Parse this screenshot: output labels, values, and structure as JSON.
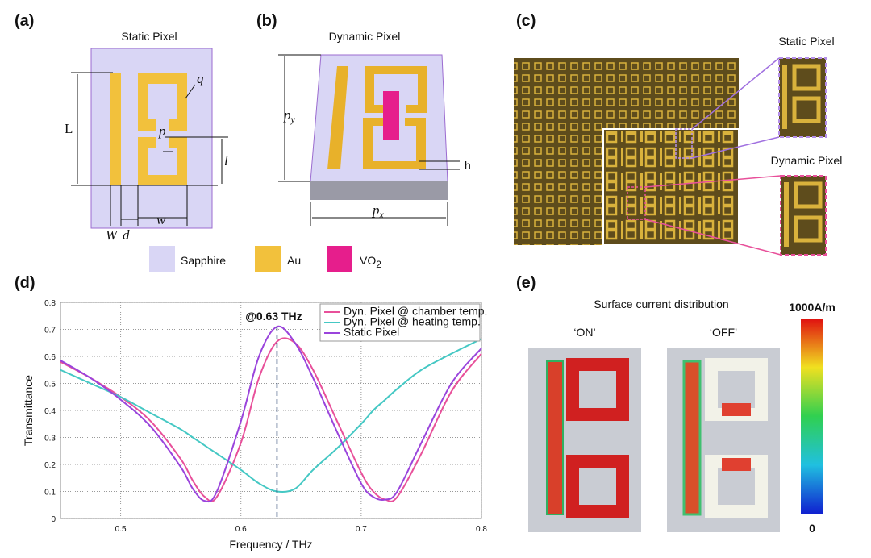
{
  "panel_a": {
    "label": "(a)",
    "title": "Static Pixel",
    "dims": [
      "L",
      "q",
      "p",
      "l",
      "W",
      "d",
      "w"
    ]
  },
  "panel_b": {
    "label": "(b)",
    "title": "Dynamic Pixel",
    "py": {
      "main": "p",
      "sub": "y"
    },
    "px": {
      "main": "p",
      "sub": "x"
    },
    "h": "h"
  },
  "panel_c": {
    "label": "(c)",
    "static": "Static Pixel",
    "dynamic": "Dynamic Pixel"
  },
  "materials": [
    {
      "text": "Sapphire"
    },
    {
      "text": "Au"
    },
    {
      "text": "VO",
      "sub": "2"
    }
  ],
  "panel_d": {
    "label": "(d)"
  },
  "panel_e": {
    "label": "(e)",
    "title": "Surface current distribution",
    "on": "‘ON’",
    "off": "‘OFF’",
    "max": "1000A/m",
    "min": "0"
  },
  "chart_data": {
    "type": "line",
    "xlabel": "Frequency / THz",
    "ylabel": "Transmittance",
    "annotation": "@0.63 THz",
    "annotation_x": 0.63,
    "x": [
      0.45,
      0.475,
      0.5,
      0.525,
      0.55,
      0.56,
      0.57,
      0.58,
      0.6,
      0.615,
      0.63,
      0.645,
      0.66,
      0.68,
      0.7,
      0.71,
      0.72,
      0.73,
      0.75,
      0.775,
      0.8
    ],
    "series": [
      {
        "name": "Dyn. Pixel @ chamber temp.",
        "color": "#e8509a",
        "values": [
          0.58,
          0.52,
          0.45,
          0.36,
          0.22,
          0.14,
          0.08,
          0.08,
          0.28,
          0.52,
          0.655,
          0.65,
          0.55,
          0.36,
          0.17,
          0.1,
          0.07,
          0.08,
          0.24,
          0.47,
          0.61
        ]
      },
      {
        "name": "Dyn. Pixel @ heating temp.",
        "color": "#45c8c4",
        "values": [
          0.55,
          0.5,
          0.45,
          0.39,
          0.33,
          0.3,
          0.27,
          0.24,
          0.18,
          0.13,
          0.1,
          0.11,
          0.18,
          0.26,
          0.35,
          0.4,
          0.44,
          0.48,
          0.55,
          0.61,
          0.665
        ]
      },
      {
        "name": "Static Pixel",
        "color": "#9a44dc",
        "values": [
          0.585,
          0.52,
          0.44,
          0.34,
          0.19,
          0.11,
          0.065,
          0.1,
          0.36,
          0.6,
          0.71,
          0.65,
          0.52,
          0.32,
          0.13,
          0.08,
          0.07,
          0.1,
          0.28,
          0.5,
          0.63
        ]
      }
    ],
    "xlim": [
      0.45,
      0.8
    ],
    "xticks": [
      0.5,
      0.6,
      0.7,
      0.8
    ],
    "ylim": [
      0,
      0.8
    ],
    "yticks": [
      0,
      0.1,
      0.2,
      0.3,
      0.4,
      0.5,
      0.6,
      0.7,
      0.8
    ],
    "grid": true,
    "legend": "upper right"
  }
}
